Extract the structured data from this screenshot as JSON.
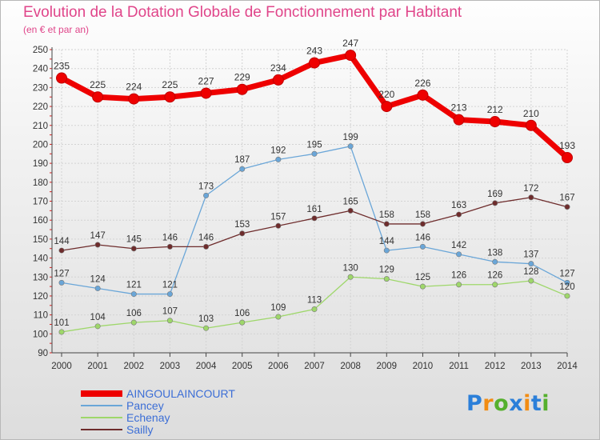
{
  "title": "Evolution de la Dotation Globale de Fonctionnement par Habitant",
  "subtitle": "(en € et par an)",
  "logo": {
    "letters": [
      "P",
      "r",
      "o",
      "x",
      "i",
      "t",
      "i"
    ],
    "colors": [
      "#2b7fd9",
      "#f28c13",
      "#55b02d",
      "#2b7fd9",
      "#f28c13",
      "#2b7fd9",
      "#55b02d"
    ]
  },
  "chart_data": {
    "type": "line",
    "x": [
      2000,
      2001,
      2002,
      2003,
      2004,
      2005,
      2006,
      2007,
      2008,
      2009,
      2010,
      2011,
      2012,
      2013,
      2014
    ],
    "ylim": [
      90,
      250
    ],
    "yticks": [
      90,
      100,
      110,
      120,
      130,
      140,
      150,
      160,
      170,
      180,
      190,
      200,
      210,
      220,
      230,
      240,
      250
    ],
    "grid": true,
    "legend_position": "bottom-left",
    "series": [
      {
        "name": "AINGOULAINCOURT",
        "color": "#ee0000",
        "values": [
          235,
          225,
          224,
          225,
          227,
          229,
          234,
          243,
          247,
          220,
          226,
          213,
          212,
          210,
          193
        ]
      },
      {
        "name": "Pancey",
        "color": "#6aa6d8",
        "values": [
          127,
          124,
          121,
          121,
          173,
          187,
          192,
          195,
          199,
          144,
          146,
          142,
          138,
          137,
          127
        ]
      },
      {
        "name": "Echenay",
        "color": "#9ed76a",
        "values": [
          101,
          104,
          106,
          107,
          103,
          106,
          109,
          113,
          130,
          129,
          125,
          126,
          126,
          128,
          120
        ]
      },
      {
        "name": "Sailly",
        "color": "#6e2c2c",
        "values": [
          144,
          147,
          145,
          146,
          146,
          153,
          157,
          161,
          165,
          158,
          158,
          163,
          169,
          172,
          167
        ]
      }
    ]
  }
}
